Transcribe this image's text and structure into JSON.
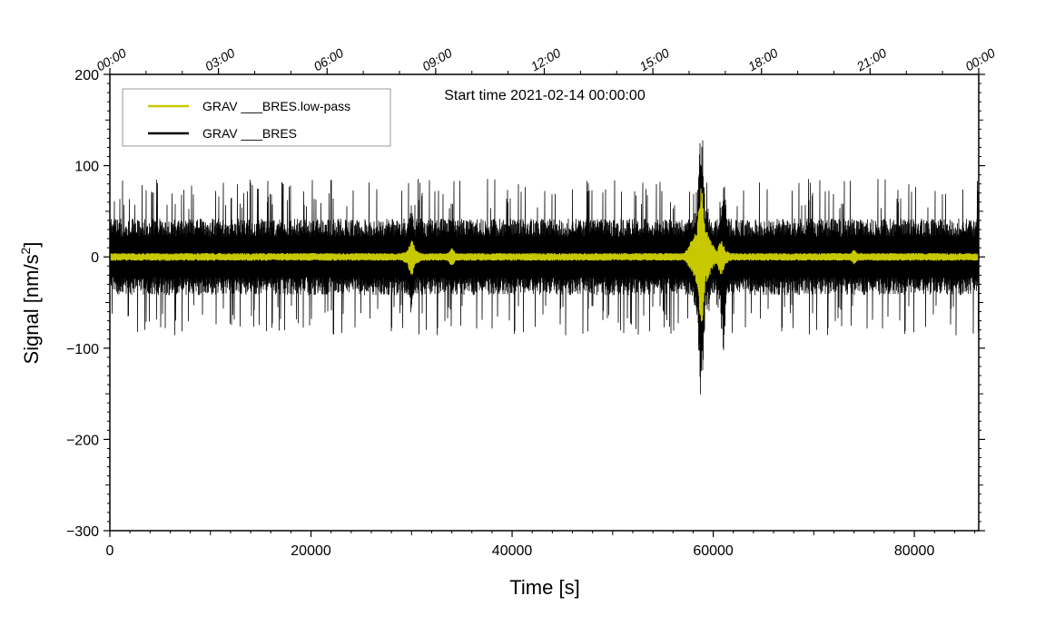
{
  "chart_data": {
    "type": "line",
    "title": "Start time 2021-02-14 00:00:00",
    "xlabel": "Time [s]",
    "ylabel_main": "Signal [nm/s",
    "ylabel_sup": "2",
    "ylabel_close": "]",
    "xlim": [
      0,
      86400
    ],
    "ylim": [
      -300,
      200
    ],
    "x_ticks": [
      0,
      20000,
      40000,
      60000,
      80000
    ],
    "x_tick_labels": [
      "0",
      "20000",
      "40000",
      "60000",
      "80000"
    ],
    "y_ticks": [
      200,
      100,
      0,
      -100,
      -200,
      -300
    ],
    "y_tick_labels": [
      "200",
      "100",
      "0",
      "−100",
      "−200",
      "−300"
    ],
    "top_axis_ticks_s": [
      0,
      10800,
      21600,
      32400,
      43200,
      54000,
      64800,
      75600,
      86400
    ],
    "top_axis_labels": [
      "00:00",
      "03:00",
      "06:00",
      "09:00",
      "12:00",
      "15:00",
      "18:00",
      "21:00",
      "00:00"
    ],
    "legend": {
      "placement": "top-left",
      "entries": [
        {
          "label": "GRAV ___BRES.low-pass",
          "color": "#c8c800"
        },
        {
          "label": "GRAV ___BRES",
          "color": "#000000"
        }
      ]
    },
    "series": [
      {
        "name": "GRAV ___BRES",
        "color": "#000000",
        "noise_envelope": {
          "baseline_amplitude": 40,
          "typical_peak": 75
        },
        "events": [
          {
            "x": 30000,
            "min": -65,
            "max": 55
          },
          {
            "x": 34000,
            "min": -45,
            "max": 45
          },
          {
            "x": 58800,
            "min": -170,
            "max": 150
          },
          {
            "x": 61000,
            "min": -105,
            "max": 85
          }
        ]
      },
      {
        "name": "GRAV ___BRES.low-pass",
        "color": "#c8c800",
        "noise_envelope": {
          "baseline_amplitude": 4
        },
        "events": [
          {
            "x": 30000,
            "min": -20,
            "max": 18
          },
          {
            "x": 34000,
            "min": -10,
            "max": 10
          },
          {
            "x": 58800,
            "min": -75,
            "max": 80
          },
          {
            "x": 60800,
            "min": -20,
            "max": 18
          },
          {
            "x": 74000,
            "min": -8,
            "max": 8
          }
        ]
      }
    ]
  }
}
